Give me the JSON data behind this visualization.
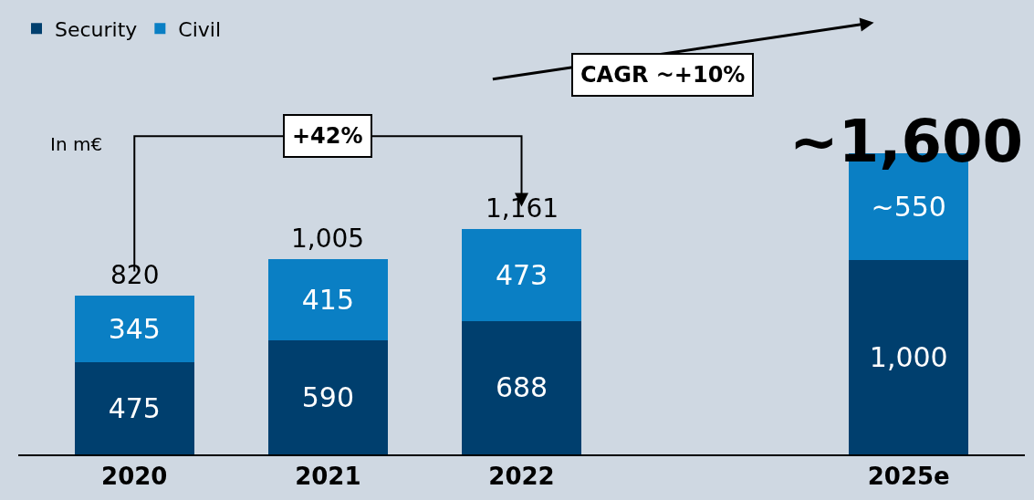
{
  "chart_data": {
    "type": "bar",
    "stacked": true,
    "categories": [
      "2020",
      "2021",
      "2022",
      null,
      "2025e"
    ],
    "series": [
      {
        "name": "Security",
        "color": "#003f6e",
        "values": [
          475,
          590,
          688,
          null,
          1000
        ],
        "value_labels": [
          "475",
          "590",
          "688",
          null,
          "1,000"
        ]
      },
      {
        "name": "Civil",
        "color": "#0a7fc4",
        "values": [
          345,
          415,
          473,
          null,
          550
        ],
        "value_labels": [
          "345",
          "415",
          "473",
          null,
          "~550"
        ]
      }
    ],
    "totals": [
      "820",
      "1,005",
      "1,161",
      null,
      null
    ],
    "annotations": [
      "In m€",
      "+42%",
      "CAGR ~+10%",
      "~1,600"
    ],
    "legend": "top left",
    "grid": false
  }
}
